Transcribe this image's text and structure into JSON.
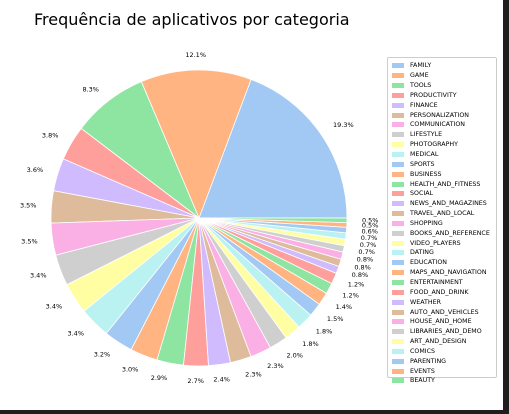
{
  "chart_data": {
    "type": "pie",
    "title": "Frequência de aplicativos por categoria",
    "legend_position": "right",
    "slices": [
      {
        "label": "FAMILY",
        "value": 19.3,
        "text": "19.3%",
        "color": "#a1c9f4"
      },
      {
        "label": "GAME",
        "value": 12.1,
        "text": "12.1%",
        "color": "#ffb482"
      },
      {
        "label": "TOOLS",
        "value": 8.3,
        "text": "8.3%",
        "color": "#8de5a1"
      },
      {
        "label": "PRODUCTIVITY",
        "value": 3.8,
        "text": "3.8%",
        "color": "#ff9f9b"
      },
      {
        "label": "FINANCE",
        "value": 3.6,
        "text": "3.6%",
        "color": "#d0bbff"
      },
      {
        "label": "PERSONALIZATION",
        "value": 3.5,
        "text": "3.5%",
        "color": "#debb9b"
      },
      {
        "label": "COMMUNICATION",
        "value": 3.5,
        "text": "3.5%",
        "color": "#fab0e4"
      },
      {
        "label": "LIFESTYLE",
        "value": 3.4,
        "text": "3.4%",
        "color": "#cfcfcf"
      },
      {
        "label": "PHOTOGRAPHY",
        "value": 3.4,
        "text": "3.4%",
        "color": "#fffea3"
      },
      {
        "label": "MEDICAL",
        "value": 3.4,
        "text": "3.4%",
        "color": "#b9f2f0"
      },
      {
        "label": "SPORTS",
        "value": 3.2,
        "text": "3.2%",
        "color": "#a1c9f4"
      },
      {
        "label": "BUSINESS",
        "value": 3.0,
        "text": "3.0%",
        "color": "#ffb482"
      },
      {
        "label": "HEALTH_AND_FITNESS",
        "value": 2.9,
        "text": "2.9%",
        "color": "#8de5a1"
      },
      {
        "label": "SOCIAL",
        "value": 2.7,
        "text": "2.7%",
        "color": "#ff9f9b"
      },
      {
        "label": "NEWS_AND_MAGAZINES",
        "value": 2.4,
        "text": "2.4%",
        "color": "#d0bbff"
      },
      {
        "label": "TRAVEL_AND_LOCAL",
        "value": 2.3,
        "text": "2.3%",
        "color": "#debb9b"
      },
      {
        "label": "SHOPPING",
        "value": 2.3,
        "text": "2.3%",
        "color": "#fab0e4"
      },
      {
        "label": "BOOKS_AND_REFERENCE",
        "value": 2.0,
        "text": "2.0%",
        "color": "#cfcfcf"
      },
      {
        "label": "VIDEO_PLAYERS",
        "value": 1.8,
        "text": "1.8%",
        "color": "#fffea3"
      },
      {
        "label": "DATING",
        "value": 1.8,
        "text": "1.8%",
        "color": "#b9f2f0"
      },
      {
        "label": "EDUCATION",
        "value": 1.5,
        "text": "1.5%",
        "color": "#a1c9f4"
      },
      {
        "label": "MAPS_AND_NAVIGATION",
        "value": 1.4,
        "text": "1.4%",
        "color": "#ffb482"
      },
      {
        "label": "ENTERTAINMENT",
        "value": 1.2,
        "text": "1.2%",
        "color": "#8de5a1"
      },
      {
        "label": "FOOD_AND_DRINK",
        "value": 1.2,
        "text": "1.2%",
        "color": "#ff9f9b"
      },
      {
        "label": "WEATHER",
        "value": 0.8,
        "text": "0.8%",
        "color": "#d0bbff"
      },
      {
        "label": "AUTO_AND_VEHICLES",
        "value": 0.8,
        "text": "0.8%",
        "color": "#debb9b"
      },
      {
        "label": "HOUSE_AND_HOME",
        "value": 0.8,
        "text": "0.8%",
        "color": "#fab0e4"
      },
      {
        "label": "LIBRARIES_AND_DEMO",
        "value": 0.7,
        "text": "0.7%",
        "color": "#cfcfcf"
      },
      {
        "label": "ART_AND_DESIGN",
        "value": 0.7,
        "text": "0.7%",
        "color": "#fffea3"
      },
      {
        "label": "COMICS",
        "value": 0.7,
        "text": "0.7%",
        "color": "#b9f2f0"
      },
      {
        "label": "PARENTING",
        "value": 0.6,
        "text": "0.6%",
        "color": "#a1c9f4"
      },
      {
        "label": "EVENTS",
        "value": 0.5,
        "text": "0.5%",
        "color": "#ffb482"
      },
      {
        "label": "BEAUTY",
        "value": 0.5,
        "text": "0.5%",
        "color": "#8de5a1"
      }
    ]
  }
}
